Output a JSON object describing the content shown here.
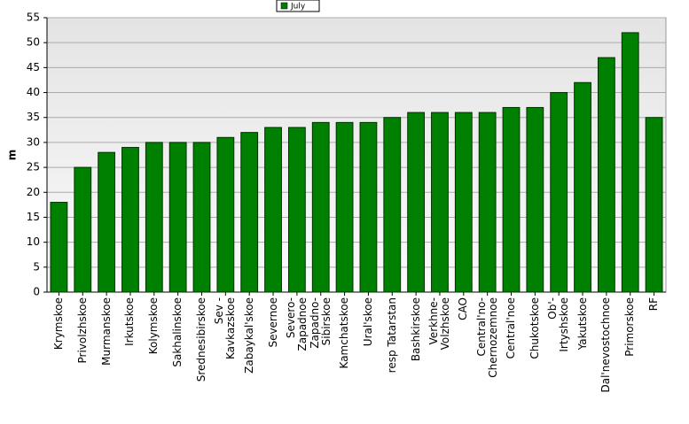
{
  "chart_data": {
    "type": "bar",
    "y_label": "m",
    "legend": "July",
    "color": "#008000",
    "categories": [
      "Krymskoe",
      "Privolzhskoe",
      "Murmanskoe",
      "Irkutskoe",
      "Kolymskoe",
      "Sakhalinskoe",
      "Srednesibirskoe",
      "Sev -\nKavkazskoe",
      "Zabaykal'skoe",
      "Severnoe",
      "Severo-\nZapadnoe",
      "Zapadno-\nSibirskoe",
      "Kamchatskoe",
      "Ural'skoe",
      "resp Tatarstan",
      "Bashkirskoe",
      "Verkhne-\nVolzhskoe",
      "CAO",
      "Central'no-\nChernozemnoe",
      "Central'noe",
      "Chukotskoe",
      "Ob'-\nIrtyshskoe",
      "Yakutskoe",
      "Dal'nevostochnoe",
      "Primorskoe",
      "RF"
    ],
    "values": [
      18,
      25,
      28,
      29,
      30,
      30,
      30,
      31,
      32,
      33,
      33,
      34,
      34,
      34,
      35,
      36,
      36,
      36,
      36,
      37,
      37,
      40,
      42,
      47,
      52,
      35
    ],
    "ylim": [
      0,
      55
    ],
    "yticks": [
      0,
      5,
      10,
      15,
      20,
      25,
      30,
      35,
      40,
      45,
      50,
      55
    ],
    "grid": true
  }
}
